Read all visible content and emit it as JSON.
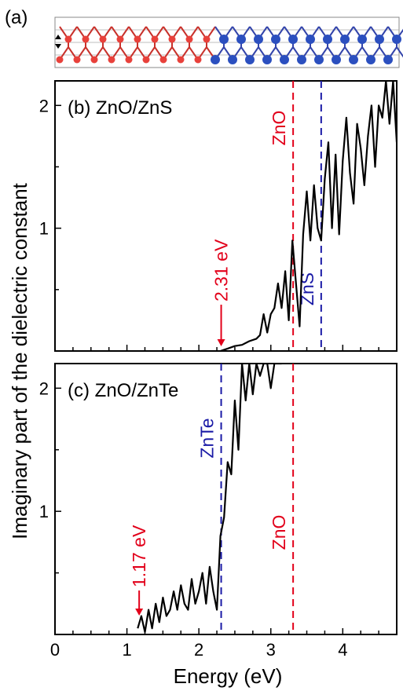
{
  "figure": {
    "panel_a_label": "(a)",
    "ylabel": "Imaginary part of the dielectric constant",
    "xlabel": "Energy (eV)"
  },
  "colors": {
    "red": "#e2001a",
    "blue": "#1a1aa6",
    "curve": "#000000",
    "o_atom": "#e8413b",
    "s_atom": "#2b4fbf",
    "bond_red": "#c8312b",
    "bond_blue": "#3344aa"
  },
  "chart_data": [
    {
      "type": "line",
      "panel_label": "(b) ZnO/ZnS",
      "xlim": [
        0,
        4.75
      ],
      "ylim": [
        0,
        2.2
      ],
      "x_ticks": [],
      "y_ticks": [
        1,
        2
      ],
      "y_tick_labels": [
        "1",
        "2"
      ],
      "vlines": [
        {
          "x": 3.31,
          "label": "ZnO",
          "color": "red"
        },
        {
          "x": 3.7,
          "label": "ZnS",
          "color": "blue"
        }
      ],
      "annotation": {
        "text": "2.31 eV",
        "x": 2.31,
        "color": "red"
      },
      "series": [
        {
          "x": [
            2.3,
            2.4,
            2.5,
            2.6,
            2.7,
            2.8,
            2.85,
            2.9,
            2.95,
            3.0,
            3.05,
            3.1,
            3.15,
            3.2,
            3.25,
            3.3,
            3.35,
            3.4,
            3.45,
            3.5,
            3.55,
            3.6,
            3.65,
            3.7,
            3.75,
            3.8,
            3.85,
            3.9,
            3.95,
            4.0,
            4.05,
            4.1,
            4.15,
            4.2,
            4.25,
            4.3,
            4.35,
            4.4,
            4.45,
            4.5,
            4.55,
            4.6,
            4.65,
            4.7,
            4.75
          ],
          "y": [
            0.0,
            0.02,
            0.04,
            0.05,
            0.08,
            0.1,
            0.13,
            0.3,
            0.15,
            0.3,
            0.35,
            0.55,
            0.35,
            0.65,
            0.25,
            0.9,
            0.55,
            0.2,
            0.95,
            1.3,
            0.9,
            1.35,
            1.0,
            0.9,
            1.4,
            1.7,
            1.0,
            1.6,
            0.95,
            1.55,
            1.9,
            1.45,
            1.2,
            1.85,
            1.65,
            1.35,
            1.75,
            2.0,
            1.5,
            2.0,
            1.9,
            2.2,
            1.85,
            2.2,
            1.7
          ]
        }
      ]
    },
    {
      "type": "line",
      "panel_label": "(c) ZnO/ZnTe",
      "xlim": [
        0,
        4.75
      ],
      "ylim": [
        0,
        2.2
      ],
      "x_ticks": [
        0,
        1,
        2,
        3,
        4
      ],
      "x_tick_labels": [
        "0",
        "1",
        "2",
        "3",
        "4"
      ],
      "y_ticks": [
        1,
        2
      ],
      "y_tick_labels": [
        "1",
        "2"
      ],
      "vlines": [
        {
          "x": 2.31,
          "label": "ZnTe",
          "color": "blue"
        },
        {
          "x": 3.31,
          "label": "ZnO",
          "color": "red"
        }
      ],
      "annotation": {
        "text": "1.17 eV",
        "x": 1.17,
        "color": "red"
      },
      "series": [
        {
          "x": [
            1.15,
            1.2,
            1.25,
            1.3,
            1.35,
            1.4,
            1.45,
            1.5,
            1.55,
            1.6,
            1.65,
            1.7,
            1.75,
            1.8,
            1.85,
            1.9,
            1.95,
            2.0,
            2.05,
            2.1,
            2.15,
            2.2,
            2.25,
            2.3,
            2.35,
            2.4,
            2.45,
            2.5,
            2.55,
            2.6,
            2.65,
            2.7,
            2.75,
            2.8,
            2.85,
            2.9,
            2.95,
            3.0,
            3.05,
            3.1,
            3.15
          ],
          "y": [
            0.05,
            0.15,
            0.02,
            0.2,
            0.05,
            0.25,
            0.1,
            0.3,
            0.15,
            0.2,
            0.35,
            0.2,
            0.4,
            0.25,
            0.2,
            0.45,
            0.25,
            0.35,
            0.5,
            0.25,
            0.55,
            0.35,
            0.2,
            0.8,
            0.95,
            1.4,
            1.3,
            1.9,
            1.5,
            2.2,
            1.9,
            2.2,
            1.95,
            2.2,
            2.1,
            2.2,
            2.2,
            2.0,
            2.2,
            2.2,
            2.2
          ]
        }
      ]
    }
  ]
}
